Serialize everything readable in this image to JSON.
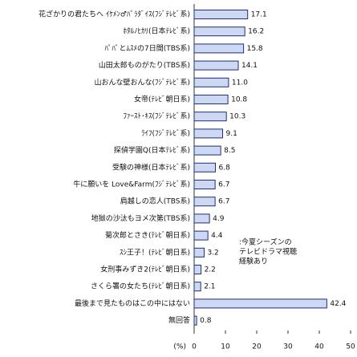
{
  "chart_data": {
    "type": "bar",
    "orientation": "horizontal",
    "categories": [
      "花ざかりの君たちへ ｲｹﾒﾝ♂ﾊﾟﾗﾀﾞｲｽ(ﾌｼﾞﾃﾚﾋﾞ系)",
      "ﾎﾀﾙﾉﾋｶﾘ(日本ﾃﾚﾋﾞ系)",
      "ﾊﾟﾊﾟとﾑｽﾒの7日間(TBS系)",
      "山田太郎ものがたり(TBS系)",
      "山おんな壁おんな(ﾌｼﾞﾃﾚﾋﾞ系)",
      "女帝(ﾃﾚﾋﾞ朝日系)",
      "ﾌｧｰｽﾄ･ｷｽ(ﾌｼﾞﾃﾚﾋﾞ系)",
      "ﾗｲﾌ(ﾌｼﾞﾃﾚﾋﾞ系)",
      "探偵学園Q(日本ﾃﾚﾋﾞ系)",
      "受験の神様(日本ﾃﾚﾋﾞ系)",
      "牛に願いを Love&Farm(ﾌｼﾞﾃﾚﾋﾞ系)",
      "肩越しの恋人(TBS系)",
      "地獄の沙汰もヨメ次第(TBS系)",
      "菊次郎とさき(ﾃﾚﾋﾞ朝日系)",
      "ｽｼ王子！(ﾃﾚﾋﾞ朝日系)",
      "女刑事みずき2(ﾃﾚﾋﾞ朝日系)",
      "さくら署の女たち(ﾃﾚﾋﾞ朝日系)",
      "最後まで見たものはこの中にはない",
      "無回答"
    ],
    "values": [
      17.1,
      16.2,
      15.8,
      14.1,
      11.0,
      10.8,
      10.3,
      9.1,
      8.5,
      6.8,
      6.7,
      6.7,
      4.9,
      4.4,
      3.2,
      2.2,
      2.1,
      42.4,
      0.8
    ],
    "value_labels": [
      "17.1",
      "16.2",
      "15.8",
      "14.1",
      "11.0",
      "10.8",
      "10.3",
      "9.1",
      "8.5",
      "6.8",
      "6.7",
      "6.7",
      "4.9",
      "4.4",
      "3.2",
      "2.2",
      "2.1",
      "42.4",
      "0.8"
    ],
    "xlim": [
      0,
      50
    ],
    "xticks": [
      0,
      10,
      20,
      30,
      40,
      50
    ],
    "x_label": "(%)",
    "annotation": [
      ":今夏シーズンの",
      "テレビドラマ視聴",
      "経験あり"
    ]
  }
}
